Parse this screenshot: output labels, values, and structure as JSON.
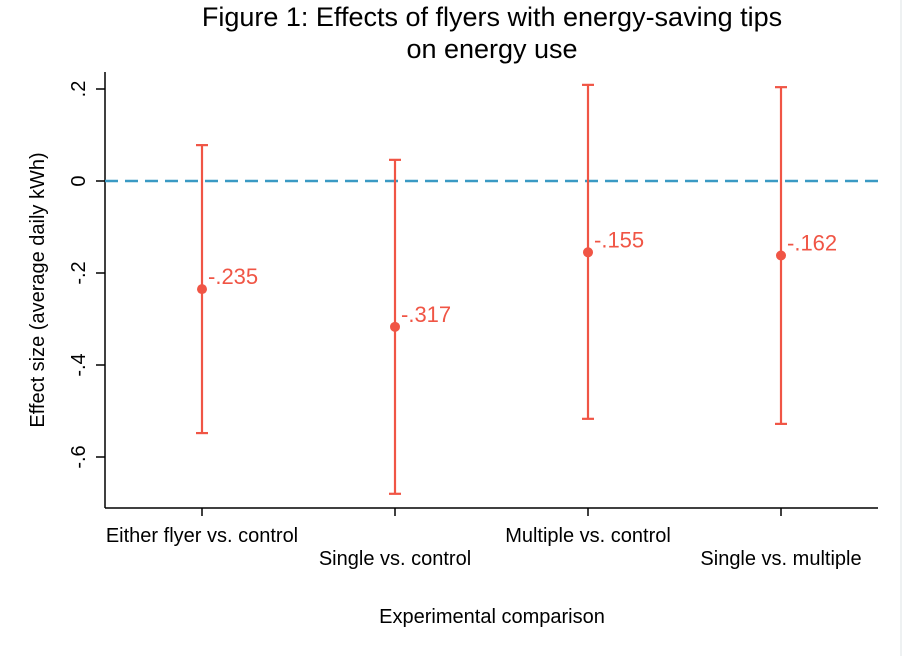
{
  "chart_data": {
    "type": "errorbar",
    "title": [
      "Figure 1: Effects of flyers with energy-saving tips",
      "on energy use"
    ],
    "xlabel": "Experimental comparison",
    "ylabel": "Effect size (average daily kWh)",
    "categories": [
      "Either flyer vs. control",
      "Single vs. control",
      "Multiple vs. control",
      "Single vs. multiple"
    ],
    "ylim": [
      -0.71,
      0.235
    ],
    "yticks": [
      0.2,
      0,
      -0.2,
      -0.4,
      -0.6
    ],
    "ytick_labels": [
      ".2",
      "0",
      "-.2",
      "-.4",
      "-.6"
    ],
    "points": [
      {
        "label": "Either flyer vs. control",
        "estimate": -0.235,
        "ci_low": -0.548,
        "ci_high": 0.078,
        "value_label": "-.235"
      },
      {
        "label": "Single vs. control",
        "estimate": -0.317,
        "ci_low": -0.68,
        "ci_high": 0.046,
        "value_label": "-.317"
      },
      {
        "label": "Multiple vs. control",
        "estimate": -0.155,
        "ci_low": -0.517,
        "ci_high": 0.209,
        "value_label": "-.155"
      },
      {
        "label": "Single vs. multiple",
        "estimate": -0.162,
        "ci_low": -0.528,
        "ci_high": 0.204,
        "value_label": "-.162"
      }
    ],
    "reference_line": {
      "value": 0,
      "style": "dashed",
      "color": "#3a9ac4"
    },
    "series_color": "#f05545",
    "grid": false,
    "legend": "none"
  }
}
